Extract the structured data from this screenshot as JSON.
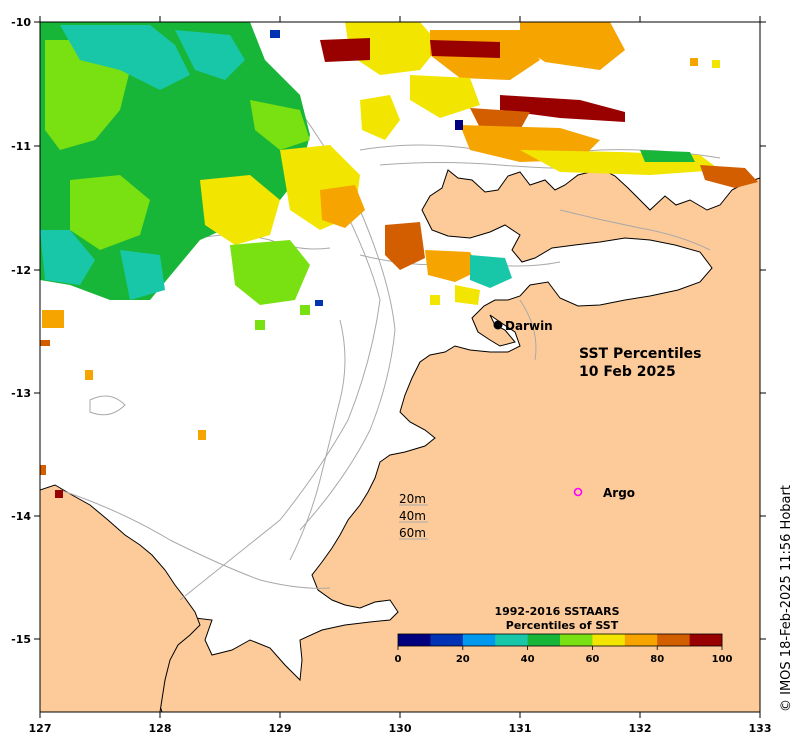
{
  "map": {
    "title_line1": "SST Percentiles",
    "title_line2": "10 Feb 2025",
    "credit": "© IMOS 18-Feb-2025 11:56 Hobart",
    "x_ticks": [
      "127",
      "128",
      "129",
      "130",
      "131",
      "132",
      "133"
    ],
    "y_ticks": [
      "-10",
      "-11",
      "-12",
      "-13",
      "-14",
      "-15"
    ],
    "places": [
      {
        "name": "Darwin",
        "marker": "filled-dot"
      },
      {
        "name": "Argo",
        "marker": "open-circle"
      }
    ],
    "depth_contours": [
      "20m",
      "40m",
      "60m"
    ],
    "colors": {
      "land": "#fdcb9a",
      "sea": "#ffffff",
      "coast": "#000000",
      "bathymetry": "#a9a9a9",
      "argo": "#ff00ff"
    }
  },
  "colorbar": {
    "title_line1": "1992-2016 SSTAARS",
    "title_line2": "Percentiles of SST",
    "ticks": [
      "0",
      "20",
      "40",
      "60",
      "80",
      "100"
    ],
    "colors": [
      "#00007f",
      "#0033b3",
      "#0099ee",
      "#18c6a8",
      "#18b638",
      "#79e011",
      "#f2e500",
      "#f5a400",
      "#d35e00",
      "#990000"
    ]
  }
}
